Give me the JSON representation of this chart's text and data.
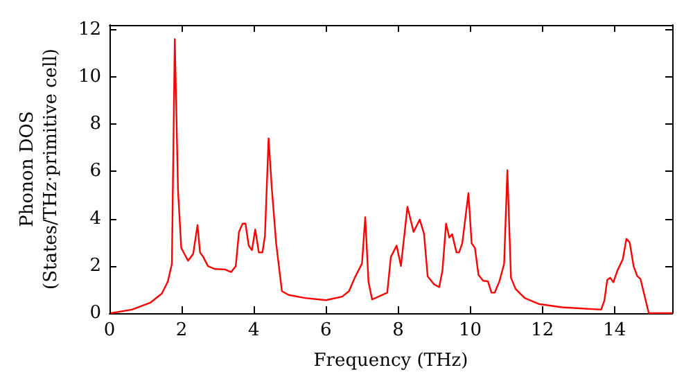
{
  "chart_data": {
    "type": "line",
    "xlabel": "Frequency (THz)",
    "ylabel": "Phonon DOS\n(States/THz·primitive cell)",
    "xlim": [
      0,
      15.6
    ],
    "ylim": [
      0,
      12.2
    ],
    "xticks": [
      0,
      2,
      4,
      6,
      8,
      10,
      12,
      14
    ],
    "yticks": [
      0,
      2,
      4,
      6,
      8,
      10,
      12
    ],
    "grid": false,
    "marker": "none",
    "line_style": "solid",
    "series": [
      {
        "color": "#ff0000",
        "x": [
          0.04,
          0.62,
          1.13,
          1.45,
          1.62,
          1.73,
          1.81,
          1.9,
          1.99,
          2.09,
          2.18,
          2.32,
          2.44,
          2.51,
          2.6,
          2.73,
          2.92,
          3.2,
          3.37,
          3.5,
          3.59,
          3.69,
          3.77,
          3.86,
          3.95,
          4.04,
          4.14,
          4.24,
          4.31,
          4.41,
          4.5,
          4.62,
          4.78,
          4.97,
          5.42,
          6.0,
          6.45,
          6.64,
          6.8,
          7.0,
          7.09,
          7.18,
          7.28,
          7.7,
          7.8,
          7.96,
          8.08,
          8.26,
          8.43,
          8.6,
          8.72,
          8.82,
          9.0,
          9.14,
          9.23,
          9.33,
          9.42,
          9.5,
          9.62,
          9.69,
          9.78,
          9.95,
          10.04,
          10.13,
          10.23,
          10.36,
          10.49,
          10.59,
          10.68,
          10.81,
          10.94,
          11.03,
          11.13,
          11.26,
          11.51,
          11.9,
          12.54,
          13.63,
          13.72,
          13.8,
          13.88,
          13.97,
          14.08,
          14.23,
          14.33,
          14.42,
          14.53,
          14.63,
          14.72,
          14.95,
          15.6
        ],
        "values": [
          0,
          0.15,
          0.44,
          0.83,
          1.35,
          2.09,
          11.6,
          5.18,
          2.76,
          2.47,
          2.22,
          2.51,
          3.73,
          2.57,
          2.38,
          1.99,
          1.87,
          1.85,
          1.74,
          1.99,
          3.44,
          3.79,
          3.79,
          2.86,
          2.67,
          3.54,
          2.57,
          2.57,
          3.28,
          7.4,
          5.28,
          2.96,
          0.93,
          0.77,
          0.64,
          0.55,
          0.7,
          0.93,
          1.5,
          2.1,
          4.06,
          1.33,
          0.58,
          0.87,
          2.38,
          2.86,
          2,
          4.5,
          3.44,
          3.96,
          3.36,
          1.56,
          1.22,
          1.1,
          1.8,
          3.79,
          3.2,
          3.34,
          2.57,
          2.57,
          2.96,
          5.08,
          2.96,
          2.76,
          1.62,
          1.37,
          1.35,
          0.87,
          0.87,
          1.35,
          2.09,
          6.05,
          1.5,
          1.02,
          0.64,
          0.39,
          0.25,
          0.15,
          0.54,
          1.41,
          1.5,
          1.31,
          1.8,
          2.28,
          3.15,
          3,
          1.99,
          1.57,
          1.45,
          0,
          0
        ]
      }
    ]
  }
}
